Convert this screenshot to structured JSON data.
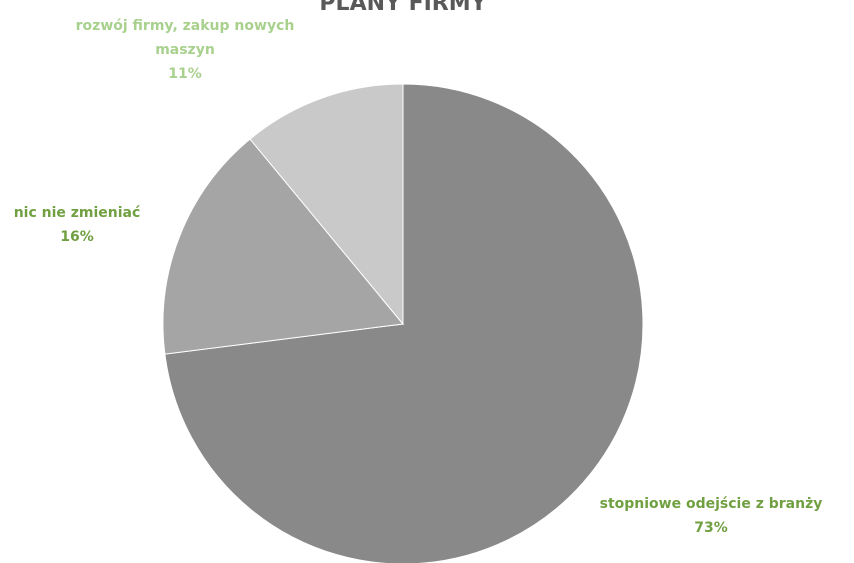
{
  "chart_data": {
    "type": "pie",
    "title": "PLANY FIRMY",
    "start_angle_deg": 0,
    "direction": "clockwise",
    "slices": [
      {
        "name": "stopniowe odejście z branży",
        "value": 73,
        "value_label": "73%",
        "color": "#898989",
        "label_color": "#70a041"
      },
      {
        "name": "nic nie zmieniać",
        "value": 16,
        "value_label": "16%",
        "color": "#a5a5a5",
        "label_color": "#70a041"
      },
      {
        "name": "rozwój firmy, zakup nowych maszyn",
        "value": 11,
        "value_label": "11%",
        "color": "#c9c9c9",
        "label_color": "#a9d18e"
      }
    ],
    "legend": "none",
    "data_labels": "outside"
  }
}
